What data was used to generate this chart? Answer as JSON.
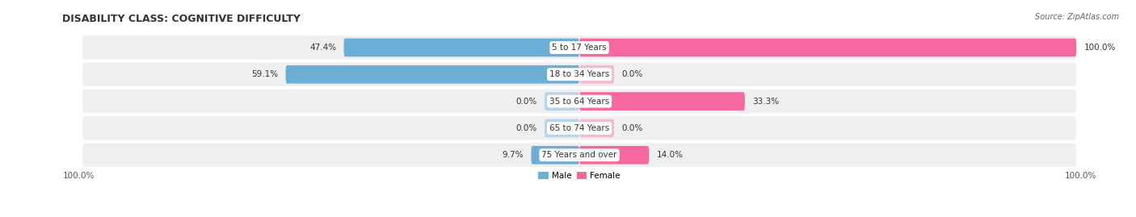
{
  "title": "DISABILITY CLASS: COGNITIVE DIFFICULTY",
  "source": "Source: ZipAtlas.com",
  "categories": [
    "5 to 17 Years",
    "18 to 34 Years",
    "35 to 64 Years",
    "65 to 74 Years",
    "75 Years and over"
  ],
  "male_values": [
    47.4,
    59.1,
    0.0,
    0.0,
    9.7
  ],
  "female_values": [
    100.0,
    0.0,
    33.3,
    0.0,
    14.0
  ],
  "male_color": "#6baed6",
  "male_color_light": "#b8d4ea",
  "female_color": "#f768a1",
  "female_color_light": "#f9b8d0",
  "row_bg_color": "#efefef",
  "title_fontsize": 9,
  "source_fontsize": 7,
  "label_fontsize": 7.5,
  "tick_fontsize": 7.5,
  "figsize": [
    14.06,
    2.69
  ],
  "dpi": 100,
  "xlim": 100,
  "stub_size": 7
}
